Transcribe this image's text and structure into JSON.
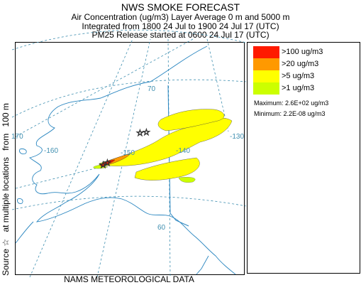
{
  "header": {
    "title": "NWS SMOKE FORECAST",
    "line1": "Air Concentration (ug/m3) Layer Average    0 m and  5000 m",
    "line2": "Integrated from 1800 24 Jul to 1900 24 Jul 17 (UTC)",
    "line3": "PM25 Release started at 0600 24 Jul 17 (UTC)"
  },
  "side_label": {
    "source": "Source ☆",
    "locations": "at multiple locations",
    "from": "from",
    "height": "100 m"
  },
  "footer": "NAMS METEOROLOGICAL DATA",
  "legend": {
    "items": [
      {
        "label": ">100 ug/m3",
        "color": "#ff1a00"
      },
      {
        "label": ">20 ug/m3",
        "color": "#ff9900"
      },
      {
        "label": ">5 ug/m3",
        "color": "#ffff00"
      },
      {
        "label": ">1 ug/m3",
        "color": "#ccff00"
      }
    ],
    "maximum": "Maximum: 2.6E+02 ug/m3",
    "minimum": "Minimum: 2.2E-08 ug/m3"
  },
  "map_labels": {
    "lon_170": "170",
    "lon_160": "-160",
    "lon_130": "-130",
    "lat_70": "70",
    "lat_60": "60",
    "contour_a": "-150",
    "contour_b": "-140"
  },
  "colors": {
    "grid": "#3f8fb0",
    "coast": "#2a86c0"
  }
}
